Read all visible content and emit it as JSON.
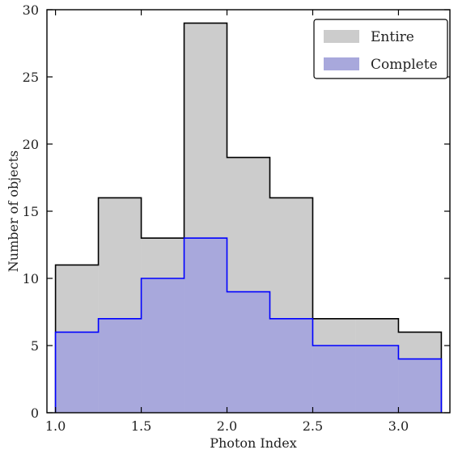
{
  "chart_data": {
    "type": "bar",
    "histogram": true,
    "bin_edges": [
      1.0,
      1.25,
      1.5,
      1.75,
      2.0,
      2.25,
      2.5,
      2.75,
      3.0,
      3.25
    ],
    "series": [
      {
        "name": "Entire",
        "values": [
          11,
          16,
          13,
          29,
          19,
          16,
          7,
          7,
          6
        ],
        "fill": "#cccccc",
        "edge": "#000000"
      },
      {
        "name": "Complete",
        "values": [
          6,
          7,
          10,
          13,
          9,
          7,
          5,
          5,
          4
        ],
        "fill": "#a8a8dc",
        "edge": "#0000ff"
      }
    ],
    "xlabel": "Photon Index",
    "ylabel": "Number of objects",
    "xlim": [
      0.95,
      3.3
    ],
    "ylim": [
      0,
      30
    ],
    "xticks": [
      "1.0",
      "1.5",
      "2.0",
      "2.5",
      "3.0"
    ],
    "yticks": [
      "0",
      "5",
      "10",
      "15",
      "20",
      "25",
      "30"
    ],
    "legend_position": "top-right",
    "grid": false
  }
}
